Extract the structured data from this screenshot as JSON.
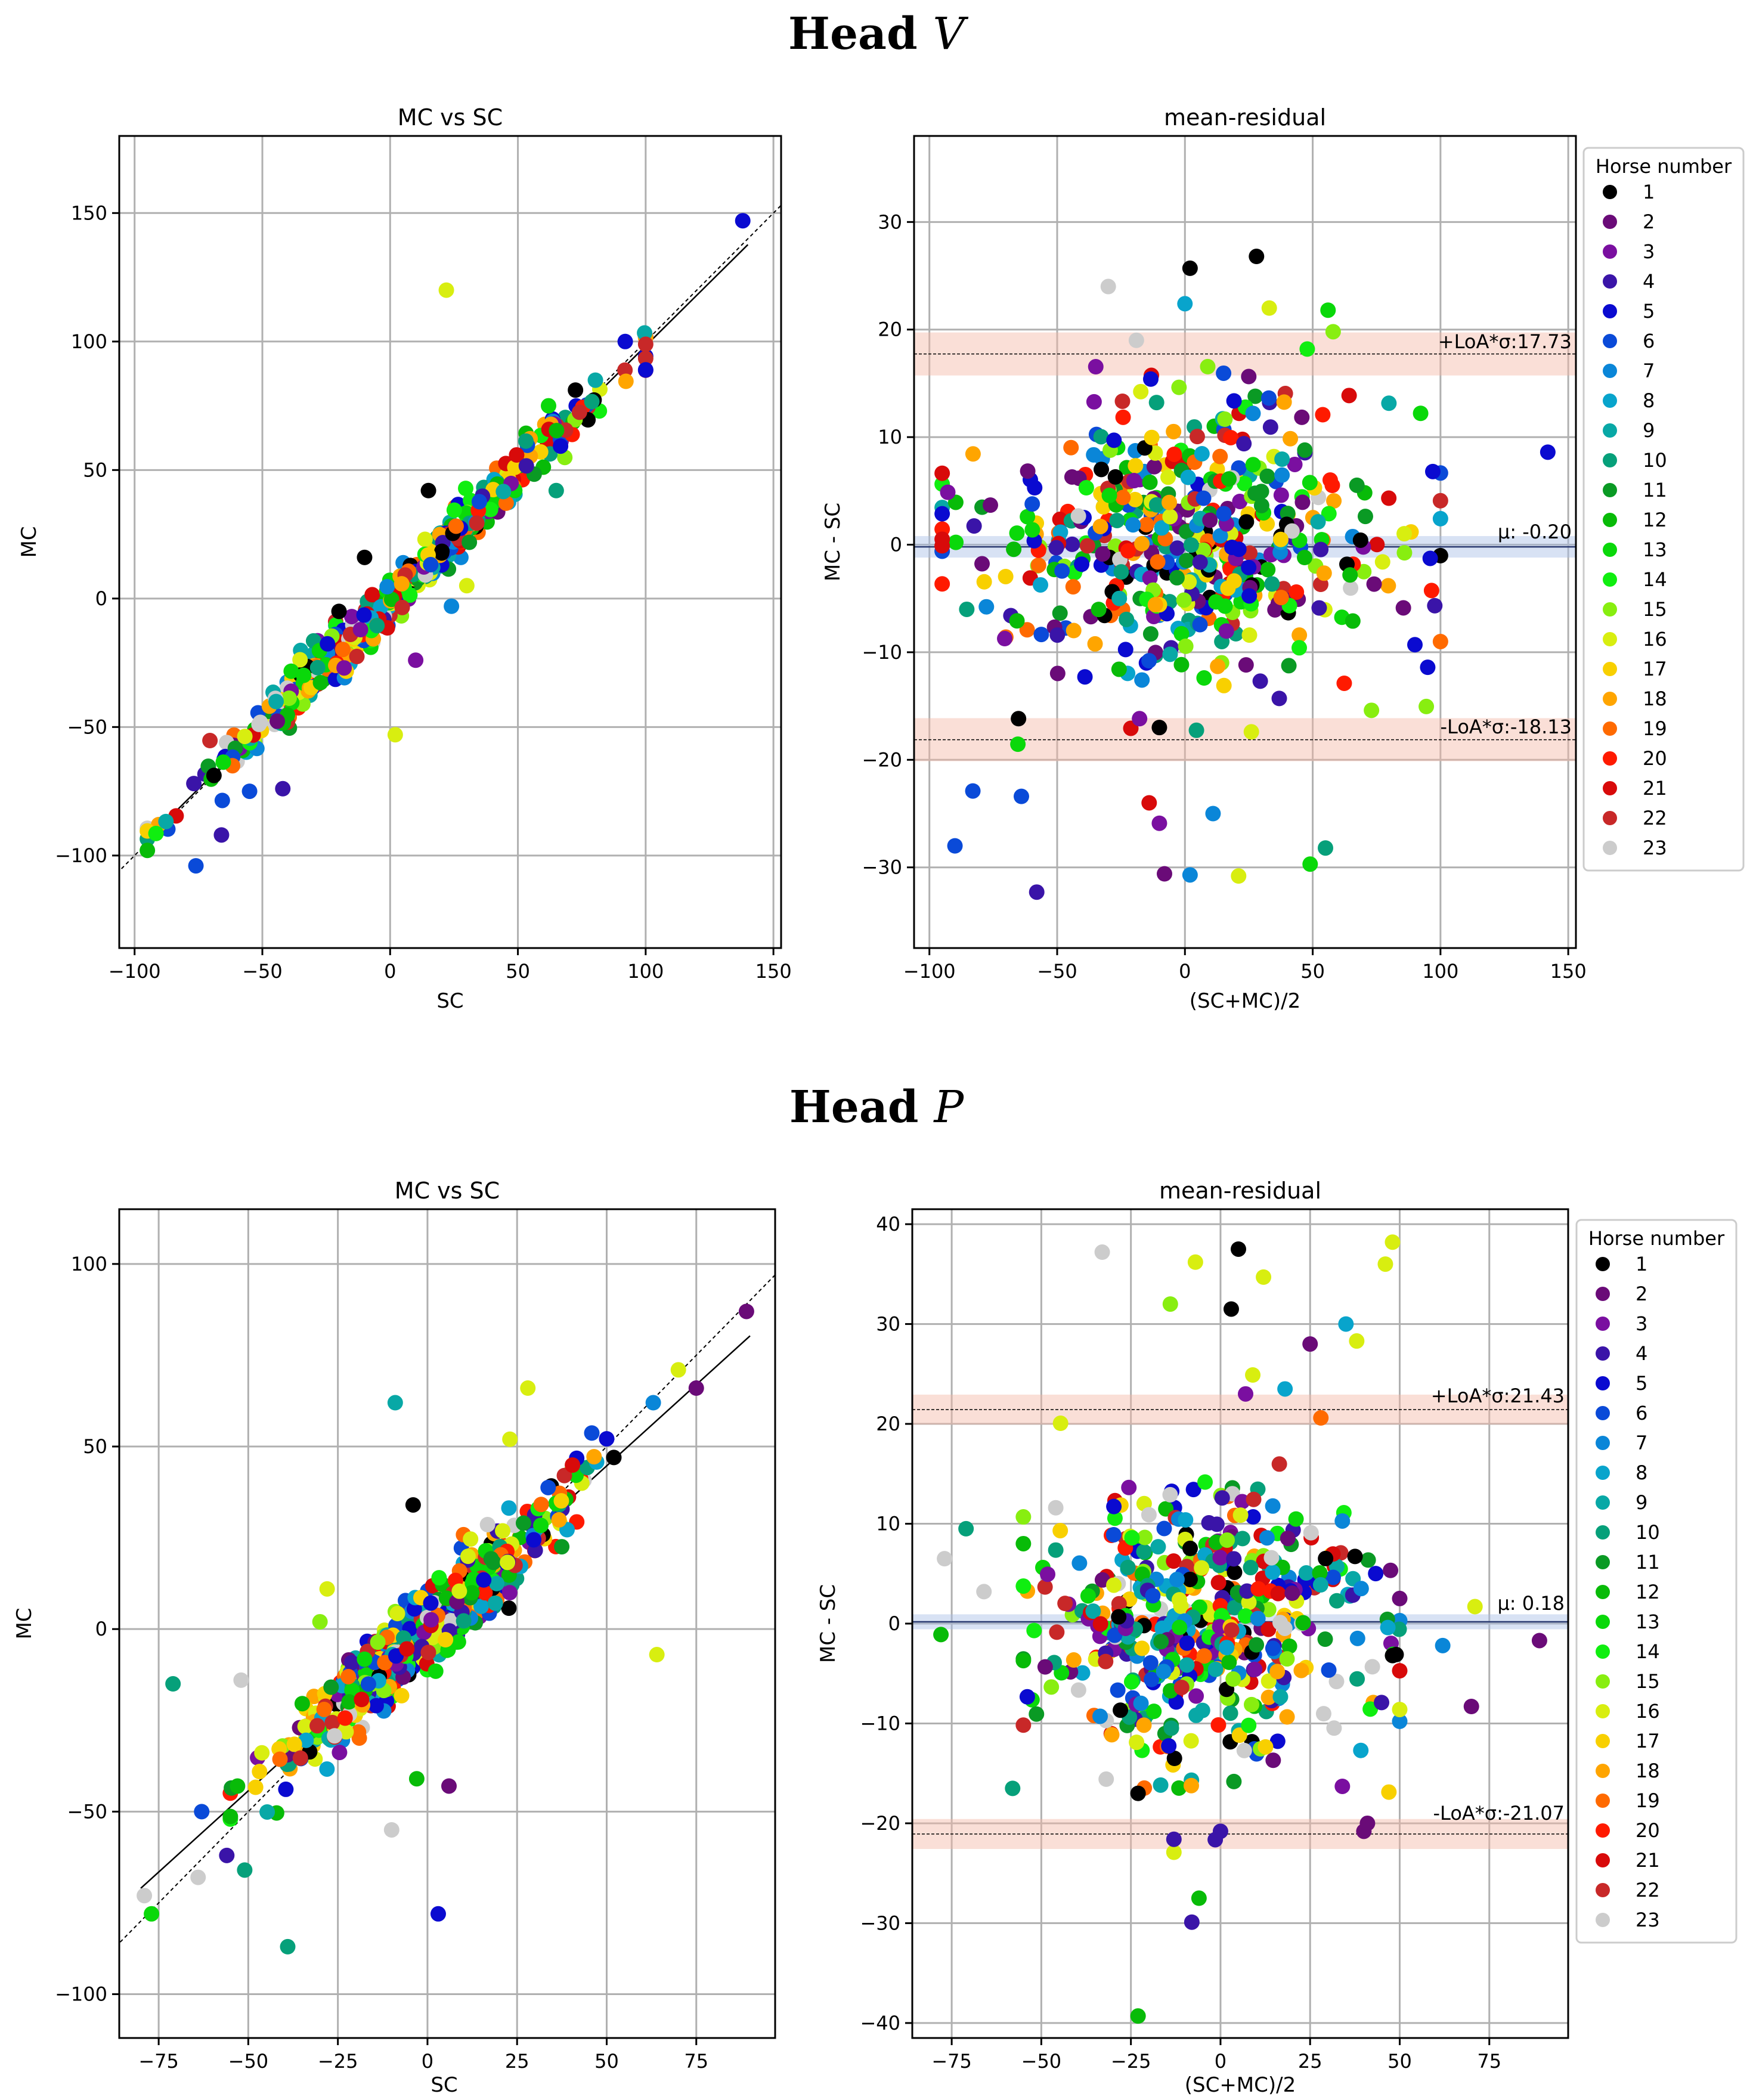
{
  "figure": {
    "sections": [
      {
        "title_prefix": "Head",
        "title_var": "V"
      },
      {
        "title_prefix": "Head",
        "title_var": "P"
      }
    ]
  },
  "legend": {
    "title": "Horse number",
    "horses": [
      "1",
      "2",
      "3",
      "4",
      "5",
      "6",
      "7",
      "8",
      "9",
      "10",
      "11",
      "12",
      "13",
      "14",
      "15",
      "16",
      "17",
      "18",
      "19",
      "20",
      "21",
      "22",
      "23"
    ],
    "colors": [
      "#000000",
      "#6a0b78",
      "#7a0fa0",
      "#3a14a8",
      "#0a0ad0",
      "#0a4ad8",
      "#0a86d8",
      "#08a4cc",
      "#08a8a6",
      "#06a07a",
      "#0a9a24",
      "#08bb08",
      "#0ad80a",
      "#10ee10",
      "#88ee10",
      "#d8ee10",
      "#f8d000",
      "#ffa500",
      "#ff6a00",
      "#ff1a00",
      "#d80a0a",
      "#c82828",
      "#cccccc"
    ]
  },
  "chart_data": [
    {
      "id": "v-scatter",
      "type": "scatter",
      "title": "MC vs SC",
      "xlabel": "SC",
      "ylabel": "MC",
      "xlim": [
        -106,
        153
      ],
      "ylim": [
        -136,
        180
      ],
      "xticks": [
        -100,
        -50,
        0,
        50,
        100,
        150
      ],
      "yticks": [
        -100,
        -50,
        0,
        50,
        100,
        150
      ],
      "xtick_labels": [
        "−100",
        "−50",
        "0",
        "50",
        "100",
        "150"
      ],
      "ytick_labels": [
        "−100",
        "−50",
        "0",
        "50",
        "100",
        "150"
      ],
      "grid": true,
      "identity_line": {
        "slope": 1.0,
        "intercept": 0,
        "style": "dashed"
      },
      "fit_line": {
        "slope": 0.985,
        "intercept": -0.2,
        "x_range": [
          -95,
          140
        ]
      },
      "cloud": {
        "count": 520,
        "x_range": [
          -95,
          100
        ],
        "spread": 9,
        "seed": 11
      },
      "points": [
        {
          "x": 138,
          "y": 147,
          "h": 5
        },
        {
          "x": 22,
          "y": 120,
          "h": 16
        },
        {
          "x": 2,
          "y": -53,
          "h": 16
        },
        {
          "x": -76,
          "y": -104,
          "h": 6
        },
        {
          "x": -95,
          "y": -98,
          "h": 12
        },
        {
          "x": -42,
          "y": -74,
          "h": 4
        },
        {
          "x": 15,
          "y": 42,
          "h": 1
        },
        {
          "x": -10,
          "y": 16,
          "h": 1
        },
        {
          "x": -20,
          "y": -5,
          "h": 1
        },
        {
          "x": 65,
          "y": 42,
          "h": 10
        },
        {
          "x": 30,
          "y": 5,
          "h": 16
        },
        {
          "x": 24,
          "y": -3,
          "h": 7
        },
        {
          "x": 92,
          "y": 100,
          "h": 5
        },
        {
          "x": 100,
          "y": 89,
          "h": 5
        },
        {
          "x": 62,
          "y": 75,
          "h": 13
        },
        {
          "x": 10,
          "y": -24,
          "h": 3
        },
        {
          "x": -18,
          "y": -27,
          "h": 3
        },
        {
          "x": -55,
          "y": -75,
          "h": 6
        },
        {
          "x": -66,
          "y": -92,
          "h": 4
        }
      ]
    },
    {
      "id": "v-bland",
      "type": "scatter",
      "title": "mean-residual",
      "xlabel": "(SC+MC)/2",
      "ylabel": "MC - SC",
      "xlim": [
        -106,
        153
      ],
      "ylim": [
        -37.5,
        38
      ],
      "xticks": [
        -100,
        -50,
        0,
        50,
        100,
        150
      ],
      "yticks": [
        -30,
        -20,
        -10,
        0,
        10,
        20,
        30
      ],
      "xtick_labels": [
        "−100",
        "−50",
        "0",
        "50",
        "100",
        "150"
      ],
      "ytick_labels": [
        "−30",
        "−20",
        "−10",
        "0",
        "10",
        "20",
        "30"
      ],
      "grid": true,
      "mean": -0.2,
      "mean_label": "μ: -0.20",
      "upper_loa": 17.73,
      "upper_label": "+LoA*σ:17.73",
      "lower_loa": -18.13,
      "lower_label": "-LoA*σ:-18.13",
      "band_halfwidth": 2.0,
      "cloud": {
        "count": 520,
        "x_range": [
          -95,
          100
        ],
        "spread": 7.5,
        "seed": 23
      },
      "points": [
        {
          "x": 2,
          "y": 25.7,
          "h": 1
        },
        {
          "x": 28,
          "y": 26.8,
          "h": 1
        },
        {
          "x": -30,
          "y": 24.0,
          "h": 23
        },
        {
          "x": 0,
          "y": 22.4,
          "h": 8
        },
        {
          "x": 33,
          "y": 22.0,
          "h": 16
        },
        {
          "x": 56,
          "y": 21.8,
          "h": 13
        },
        {
          "x": 58,
          "y": 19.8,
          "h": 15
        },
        {
          "x": 142,
          "y": 8.6,
          "h": 5
        },
        {
          "x": 97,
          "y": 6.8,
          "h": 5
        },
        {
          "x": -90,
          "y": -28.0,
          "h": 6
        },
        {
          "x": -83,
          "y": -22.9,
          "h": 6
        },
        {
          "x": -64,
          "y": -23.4,
          "h": 6
        },
        {
          "x": -58,
          "y": -32.3,
          "h": 4
        },
        {
          "x": -8,
          "y": -30.6,
          "h": 2
        },
        {
          "x": 2,
          "y": -30.7,
          "h": 7
        },
        {
          "x": 11,
          "y": -25.0,
          "h": 7
        },
        {
          "x": 21,
          "y": -30.8,
          "h": 16
        },
        {
          "x": 49,
          "y": -29.7,
          "h": 13
        },
        {
          "x": 55,
          "y": -28.2,
          "h": 10
        },
        {
          "x": -10,
          "y": -25.9,
          "h": 3
        },
        {
          "x": -14,
          "y": -24.0,
          "h": 21
        },
        {
          "x": -10,
          "y": -17.0,
          "h": 1
        },
        {
          "x": 26,
          "y": -17.4,
          "h": 16
        },
        {
          "x": 73,
          "y": -15.4,
          "h": 15
        },
        {
          "x": 95,
          "y": -11.4,
          "h": 5
        },
        {
          "x": 90,
          "y": -9.3,
          "h": 5
        },
        {
          "x": -19,
          "y": 19.0,
          "h": 23
        }
      ]
    },
    {
      "id": "p-scatter",
      "type": "scatter",
      "title": "MC vs SC",
      "xlabel": "SC",
      "ylabel": "MC",
      "xlim": [
        -86,
        97
      ],
      "ylim": [
        -112,
        115
      ],
      "xticks": [
        -75,
        -50,
        -25,
        0,
        25,
        50,
        75
      ],
      "yticks": [
        -100,
        -50,
        0,
        50,
        100
      ],
      "xtick_labels": [
        "−75",
        "−50",
        "−25",
        "0",
        "25",
        "50",
        "75"
      ],
      "ytick_labels": [
        "−100",
        "−50",
        "0",
        "50",
        "100"
      ],
      "grid": true,
      "identity_line": {
        "slope": 1.0,
        "intercept": 0,
        "style": "dashed"
      },
      "fit_line": {
        "slope": 0.89,
        "intercept": 0.2,
        "x_range": [
          -80,
          90
        ]
      },
      "cloud": {
        "count": 520,
        "x_range": [
          -55,
          50
        ],
        "spread": 10,
        "seed": 37
      },
      "points": [
        {
          "x": 89,
          "y": 87,
          "h": 2
        },
        {
          "x": 75,
          "y": 66,
          "h": 2
        },
        {
          "x": 70,
          "y": 71,
          "h": 16
        },
        {
          "x": 64,
          "y": -7,
          "h": 16
        },
        {
          "x": 63,
          "y": 62,
          "h": 7
        },
        {
          "x": -9,
          "y": 62,
          "h": 9
        },
        {
          "x": -71,
          "y": -15,
          "h": 10
        },
        {
          "x": -52,
          "y": -14,
          "h": 23
        },
        {
          "x": -39,
          "y": -87,
          "h": 10
        },
        {
          "x": 3,
          "y": -78,
          "h": 5
        },
        {
          "x": -10,
          "y": -55,
          "h": 23
        },
        {
          "x": -77,
          "y": -78,
          "h": 13
        },
        {
          "x": -79,
          "y": -73,
          "h": 23
        },
        {
          "x": -63,
          "y": -50,
          "h": 6
        },
        {
          "x": 6,
          "y": -43,
          "h": 2
        },
        {
          "x": -3,
          "y": -41,
          "h": 12
        },
        {
          "x": -51,
          "y": -66,
          "h": 10
        },
        {
          "x": -28,
          "y": 11,
          "h": 16
        },
        {
          "x": -30,
          "y": 2,
          "h": 15
        },
        {
          "x": -4,
          "y": 34,
          "h": 1
        },
        {
          "x": 52,
          "y": 47,
          "h": 1
        },
        {
          "x": 28,
          "y": 66,
          "h": 16
        },
        {
          "x": 23,
          "y": 52,
          "h": 16
        },
        {
          "x": -53,
          "y": -43,
          "h": 12
        },
        {
          "x": -56,
          "y": -62,
          "h": 4
        },
        {
          "x": -64,
          "y": -68,
          "h": 23
        }
      ]
    },
    {
      "id": "p-bland",
      "type": "scatter",
      "title": "mean-residual",
      "xlabel": "(SC+MC)/2",
      "ylabel": "MC - SC",
      "xlim": [
        -86,
        97
      ],
      "ylim": [
        -41.5,
        41.5
      ],
      "xticks": [
        -75,
        -50,
        -25,
        0,
        25,
        50,
        75
      ],
      "yticks": [
        -40,
        -30,
        -20,
        -10,
        0,
        10,
        20,
        30,
        40
      ],
      "xtick_labels": [
        "−75",
        "−50",
        "−25",
        "0",
        "25",
        "50",
        "75"
      ],
      "ytick_labels": [
        "−40",
        "−30",
        "−20",
        "−10",
        "0",
        "10",
        "20",
        "30",
        "40"
      ],
      "grid": true,
      "mean": 0.18,
      "mean_label": "μ: 0.18",
      "upper_loa": 21.43,
      "upper_label": "+LoA*σ:21.43",
      "lower_loa": -21.07,
      "lower_label": "-LoA*σ:-21.07",
      "band_halfwidth": 1.5,
      "cloud": {
        "count": 520,
        "x_range": [
          -55,
          50
        ],
        "spread": 8,
        "seed": 51
      },
      "points": [
        {
          "x": 5,
          "y": 37.5,
          "h": 1
        },
        {
          "x": -33,
          "y": 37.2,
          "h": 23
        },
        {
          "x": -7,
          "y": 36.2,
          "h": 16
        },
        {
          "x": 12,
          "y": 34.7,
          "h": 16
        },
        {
          "x": 48,
          "y": 38.2,
          "h": 16
        },
        {
          "x": 46,
          "y": 36.0,
          "h": 16
        },
        {
          "x": 3,
          "y": 31.5,
          "h": 1
        },
        {
          "x": -14,
          "y": 32.0,
          "h": 15
        },
        {
          "x": 35,
          "y": 30.0,
          "h": 8
        },
        {
          "x": 25,
          "y": 28.0,
          "h": 2
        },
        {
          "x": 38,
          "y": 28.3,
          "h": 16
        },
        {
          "x": 89,
          "y": -1.7,
          "h": 2
        },
        {
          "x": 71,
          "y": 1.7,
          "h": 16
        },
        {
          "x": 70,
          "y": -8.3,
          "h": 2
        },
        {
          "x": 62,
          "y": -2.2,
          "h": 7
        },
        {
          "x": -23,
          "y": -39.3,
          "h": 12
        },
        {
          "x": -8,
          "y": -29.9,
          "h": 4
        },
        {
          "x": -6,
          "y": -27.5,
          "h": 12
        },
        {
          "x": -13,
          "y": -22.9,
          "h": 16
        },
        {
          "x": -13,
          "y": -21.6,
          "h": 4
        },
        {
          "x": 0,
          "y": -20.8,
          "h": 4
        },
        {
          "x": 40,
          "y": -20.8,
          "h": 2
        },
        {
          "x": 41,
          "y": -20.0,
          "h": 2
        },
        {
          "x": -23,
          "y": -17.0,
          "h": 1
        },
        {
          "x": 34,
          "y": -16.3,
          "h": 3
        },
        {
          "x": -58,
          "y": -16.5,
          "h": 10
        },
        {
          "x": -77,
          "y": 6.5,
          "h": 23
        },
        {
          "x": -71,
          "y": 9.5,
          "h": 10
        },
        {
          "x": -78,
          "y": -1.1,
          "h": 12
        },
        {
          "x": -66,
          "y": 3.2,
          "h": 23
        },
        {
          "x": 48,
          "y": -3.2,
          "h": 1
        },
        {
          "x": 49,
          "y": -3.1,
          "h": 1
        },
        {
          "x": 7,
          "y": 23.0,
          "h": 3
        },
        {
          "x": 9,
          "y": 24.9,
          "h": 16
        },
        {
          "x": 18,
          "y": 23.5,
          "h": 8
        },
        {
          "x": 28,
          "y": 20.6,
          "h": 19
        }
      ]
    }
  ]
}
